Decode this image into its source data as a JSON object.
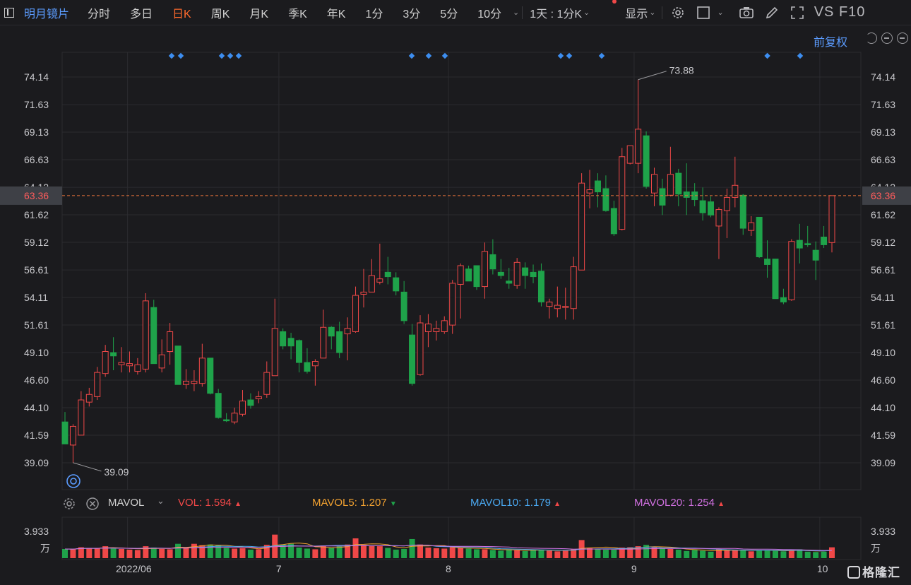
{
  "toolbar": {
    "stock_name": "明月镜片",
    "tabs": [
      {
        "label": "分时",
        "active": false
      },
      {
        "label": "多日",
        "active": false
      },
      {
        "label": "日K",
        "active": true
      },
      {
        "label": "周K",
        "active": false
      },
      {
        "label": "月K",
        "active": false
      },
      {
        "label": "季K",
        "active": false
      },
      {
        "label": "年K",
        "active": false
      },
      {
        "label": "1分",
        "active": false
      },
      {
        "label": "3分",
        "active": false
      },
      {
        "label": "5分",
        "active": false
      },
      {
        "label": "10分",
        "active": false
      }
    ],
    "period_select": "1天 : 1分K",
    "display_label": "显示",
    "vs_f10": "VS F10",
    "icons": [
      "gear-icon",
      "square-icon",
      "camera-icon",
      "pencil-icon",
      "expand-icon"
    ]
  },
  "chart_header": {
    "adjust_label": "前复权"
  },
  "colors": {
    "up": "#f04848",
    "down": "#1fa34a",
    "background": "#1b1b1e",
    "grid": "#2b2b2f",
    "price_line": "#e8743b",
    "mavol5": "#f0a030",
    "mavol10": "#4aa8f0",
    "mavol20": "#d070e0",
    "marker": "#3d8ef0"
  },
  "indicator_bar": {
    "name": "MAVOL",
    "vol_label": "VOL:",
    "vol_value": "1.594",
    "mavol5_label": "MAVOL5:",
    "mavol5_value": "1.207",
    "mavol10_label": "MAVOL10:",
    "mavol10_value": "1.179",
    "mavol20_label": "MAVOL20:",
    "mavol20_value": "1.254"
  },
  "logo_text": "格隆汇",
  "chart_data": [
    {
      "type": "candlestick",
      "title": "",
      "y_ticks": [
        39.09,
        41.59,
        44.1,
        46.6,
        49.1,
        51.61,
        54.11,
        56.61,
        59.12,
        61.62,
        64.12,
        66.63,
        69.13,
        71.63,
        74.14
      ],
      "y_tick_labels": [
        "39.09",
        "41.59",
        "44.10",
        "46.60",
        "49.10",
        "51.61",
        "54.11",
        "56.61",
        "59.12",
        "61.62",
        "64.12",
        "66.63",
        "69.13",
        "71.63",
        "74.14"
      ],
      "current_price": 63.36,
      "current_price_label": "63.36",
      "high_label": "73.88",
      "low_label": "39.09",
      "x_labels": [
        "2022/06",
        "7",
        "8",
        "9",
        "10"
      ],
      "marker_count": 13,
      "candles": [
        {
          "o": 42.8,
          "h": 43.7,
          "l": 40.8,
          "c": 40.8
        },
        {
          "o": 40.7,
          "h": 42.6,
          "l": 39.1,
          "c": 42.4
        },
        {
          "o": 41.6,
          "h": 45.6,
          "l": 41.6,
          "c": 44.8
        },
        {
          "o": 44.6,
          "h": 45.9,
          "l": 44.2,
          "c": 45.3
        },
        {
          "o": 45.1,
          "h": 47.8,
          "l": 44.8,
          "c": 47.3
        },
        {
          "o": 47.2,
          "h": 49.8,
          "l": 46.9,
          "c": 49.2
        },
        {
          "o": 49.1,
          "h": 50.5,
          "l": 47.5,
          "c": 48.8
        },
        {
          "o": 48.0,
          "h": 49.6,
          "l": 47.3,
          "c": 48.2
        },
        {
          "o": 47.9,
          "h": 49.2,
          "l": 47.3,
          "c": 48.1
        },
        {
          "o": 47.4,
          "h": 48.6,
          "l": 47.1,
          "c": 48.0
        },
        {
          "o": 47.6,
          "h": 54.5,
          "l": 47.3,
          "c": 53.8
        },
        {
          "o": 53.2,
          "h": 53.9,
          "l": 48.1,
          "c": 48.1
        },
        {
          "o": 47.7,
          "h": 50.3,
          "l": 47.3,
          "c": 48.9
        },
        {
          "o": 49.2,
          "h": 51.8,
          "l": 48.0,
          "c": 51.0
        },
        {
          "o": 49.7,
          "h": 49.7,
          "l": 46.2,
          "c": 46.2
        },
        {
          "o": 46.2,
          "h": 47.6,
          "l": 45.8,
          "c": 46.5
        },
        {
          "o": 46.3,
          "h": 47.5,
          "l": 45.6,
          "c": 46.5
        },
        {
          "o": 46.3,
          "h": 49.9,
          "l": 46.0,
          "c": 48.6
        },
        {
          "o": 48.6,
          "h": 48.6,
          "l": 45.3,
          "c": 45.4
        },
        {
          "o": 45.4,
          "h": 45.8,
          "l": 43.1,
          "c": 43.2
        },
        {
          "o": 43.0,
          "h": 43.6,
          "l": 42.8,
          "c": 42.9
        },
        {
          "o": 42.8,
          "h": 44.1,
          "l": 42.6,
          "c": 43.6
        },
        {
          "o": 43.5,
          "h": 45.7,
          "l": 43.3,
          "c": 44.7
        },
        {
          "o": 44.8,
          "h": 45.4,
          "l": 44.0,
          "c": 44.3
        },
        {
          "o": 44.9,
          "h": 45.6,
          "l": 44.5,
          "c": 45.1
        },
        {
          "o": 45.3,
          "h": 48.3,
          "l": 45.0,
          "c": 47.3
        },
        {
          "o": 47.0,
          "h": 54.0,
          "l": 47.0,
          "c": 51.3
        },
        {
          "o": 51.0,
          "h": 51.3,
          "l": 49.4,
          "c": 49.7
        },
        {
          "o": 50.4,
          "h": 50.9,
          "l": 48.5,
          "c": 49.7
        },
        {
          "o": 50.2,
          "h": 50.3,
          "l": 47.3,
          "c": 48.2
        },
        {
          "o": 48.2,
          "h": 49.5,
          "l": 47.2,
          "c": 47.4
        },
        {
          "o": 47.9,
          "h": 48.5,
          "l": 46.1,
          "c": 48.3
        },
        {
          "o": 48.6,
          "h": 53.0,
          "l": 48.6,
          "c": 51.4
        },
        {
          "o": 51.4,
          "h": 51.5,
          "l": 49.4,
          "c": 50.6
        },
        {
          "o": 51.0,
          "h": 51.9,
          "l": 48.6,
          "c": 49.1
        },
        {
          "o": 50.8,
          "h": 52.3,
          "l": 48.4,
          "c": 51.3
        },
        {
          "o": 51.0,
          "h": 55.1,
          "l": 50.9,
          "c": 54.3
        },
        {
          "o": 54.4,
          "h": 56.7,
          "l": 53.2,
          "c": 54.6
        },
        {
          "o": 54.6,
          "h": 57.6,
          "l": 54.6,
          "c": 56.1
        },
        {
          "o": 55.5,
          "h": 59.0,
          "l": 55.3,
          "c": 55.8
        },
        {
          "o": 56.4,
          "h": 57.8,
          "l": 55.3,
          "c": 56.0
        },
        {
          "o": 55.9,
          "h": 56.4,
          "l": 54.3,
          "c": 54.7
        },
        {
          "o": 54.6,
          "h": 55.6,
          "l": 51.7,
          "c": 52.0
        },
        {
          "o": 50.7,
          "h": 51.7,
          "l": 46.1,
          "c": 46.3
        },
        {
          "o": 47.1,
          "h": 52.5,
          "l": 47.0,
          "c": 51.8
        },
        {
          "o": 51.0,
          "h": 52.6,
          "l": 49.6,
          "c": 51.7
        },
        {
          "o": 51.0,
          "h": 52.0,
          "l": 50.2,
          "c": 51.3
        },
        {
          "o": 51.0,
          "h": 52.4,
          "l": 50.8,
          "c": 52.0
        },
        {
          "o": 51.6,
          "h": 55.7,
          "l": 50.8,
          "c": 55.4
        },
        {
          "o": 55.3,
          "h": 57.2,
          "l": 52.2,
          "c": 57.0
        },
        {
          "o": 56.7,
          "h": 57.0,
          "l": 55.6,
          "c": 55.6
        },
        {
          "o": 57.0,
          "h": 57.0,
          "l": 54.8,
          "c": 55.1
        },
        {
          "o": 55.1,
          "h": 59.1,
          "l": 54.0,
          "c": 58.3
        },
        {
          "o": 58.0,
          "h": 59.4,
          "l": 56.2,
          "c": 56.7
        },
        {
          "o": 56.4,
          "h": 57.6,
          "l": 55.8,
          "c": 56.1
        },
        {
          "o": 55.6,
          "h": 56.8,
          "l": 54.9,
          "c": 55.4
        },
        {
          "o": 55.2,
          "h": 57.7,
          "l": 54.9,
          "c": 57.3
        },
        {
          "o": 56.8,
          "h": 57.3,
          "l": 54.9,
          "c": 56.1
        },
        {
          "o": 56.4,
          "h": 57.1,
          "l": 55.4,
          "c": 56.0
        },
        {
          "o": 56.5,
          "h": 57.2,
          "l": 53.3,
          "c": 53.7
        },
        {
          "o": 53.3,
          "h": 54.0,
          "l": 52.2,
          "c": 53.7
        },
        {
          "o": 53.1,
          "h": 55.1,
          "l": 52.3,
          "c": 53.4
        },
        {
          "o": 53.2,
          "h": 55.0,
          "l": 52.1,
          "c": 53.3
        },
        {
          "o": 53.1,
          "h": 57.8,
          "l": 52.1,
          "c": 56.9
        },
        {
          "o": 56.6,
          "h": 65.4,
          "l": 56.6,
          "c": 64.5
        },
        {
          "o": 63.6,
          "h": 65.7,
          "l": 62.2,
          "c": 63.9
        },
        {
          "o": 64.7,
          "h": 65.4,
          "l": 62.3,
          "c": 63.7
        },
        {
          "o": 64.0,
          "h": 65.2,
          "l": 61.9,
          "c": 62.0
        },
        {
          "o": 62.2,
          "h": 62.9,
          "l": 59.7,
          "c": 59.9
        },
        {
          "o": 60.3,
          "h": 67.7,
          "l": 60.2,
          "c": 66.9
        },
        {
          "o": 66.3,
          "h": 67.9,
          "l": 66.2,
          "c": 67.9
        },
        {
          "o": 66.3,
          "h": 73.9,
          "l": 65.4,
          "c": 69.4
        },
        {
          "o": 68.8,
          "h": 69.2,
          "l": 64.0,
          "c": 64.2
        },
        {
          "o": 63.6,
          "h": 65.9,
          "l": 62.4,
          "c": 65.3
        },
        {
          "o": 64.0,
          "h": 64.9,
          "l": 61.6,
          "c": 62.5
        },
        {
          "o": 63.4,
          "h": 67.8,
          "l": 63.3,
          "c": 65.3
        },
        {
          "o": 65.4,
          "h": 65.8,
          "l": 62.4,
          "c": 63.5
        },
        {
          "o": 63.7,
          "h": 66.3,
          "l": 61.6,
          "c": 63.2
        },
        {
          "o": 63.7,
          "h": 64.5,
          "l": 62.4,
          "c": 63.0
        },
        {
          "o": 62.9,
          "h": 64.1,
          "l": 61.1,
          "c": 61.8
        },
        {
          "o": 62.8,
          "h": 63.3,
          "l": 61.4,
          "c": 61.6
        },
        {
          "o": 60.6,
          "h": 62.3,
          "l": 57.6,
          "c": 62.1
        },
        {
          "o": 62.0,
          "h": 64.0,
          "l": 59.5,
          "c": 63.2
        },
        {
          "o": 63.2,
          "h": 66.9,
          "l": 62.3,
          "c": 64.3
        },
        {
          "o": 63.4,
          "h": 63.5,
          "l": 59.8,
          "c": 60.4
        },
        {
          "o": 60.2,
          "h": 61.5,
          "l": 59.7,
          "c": 60.9
        },
        {
          "o": 61.4,
          "h": 61.4,
          "l": 57.7,
          "c": 57.8
        },
        {
          "o": 57.6,
          "h": 59.3,
          "l": 55.9,
          "c": 57.1
        },
        {
          "o": 57.6,
          "h": 57.6,
          "l": 54.0,
          "c": 54.0
        },
        {
          "o": 54.1,
          "h": 54.9,
          "l": 53.5,
          "c": 53.7
        },
        {
          "o": 53.9,
          "h": 59.4,
          "l": 53.8,
          "c": 59.2
        },
        {
          "o": 59.3,
          "h": 60.8,
          "l": 57.2,
          "c": 58.6
        },
        {
          "o": 59.0,
          "h": 60.6,
          "l": 58.7,
          "c": 58.9
        },
        {
          "o": 58.4,
          "h": 59.2,
          "l": 55.7,
          "c": 57.5
        },
        {
          "o": 59.6,
          "h": 60.6,
          "l": 58.6,
          "c": 58.9
        },
        {
          "o": 59.1,
          "h": 63.4,
          "l": 58.2,
          "c": 63.36
        }
      ]
    },
    {
      "type": "bar",
      "title": "MAVOL",
      "y_tick_label": "3.933",
      "unit_label": "万",
      "up_down": "matches candles",
      "values": [
        1.35,
        1.3,
        1.6,
        1.5,
        1.45,
        1.75,
        1.4,
        1.35,
        1.25,
        1.2,
        1.75,
        1.55,
        1.35,
        1.3,
        2.1,
        1.6,
        2.1,
        1.9,
        2.0,
        1.9,
        1.5,
        1.4,
        1.45,
        1.25,
        1.3,
        1.95,
        3.45,
        2.0,
        2.1,
        1.55,
        1.4,
        1.3,
        1.85,
        1.5,
        1.8,
        2.0,
        2.9,
        1.95,
        1.8,
        1.75,
        1.5,
        1.25,
        1.35,
        2.8,
        2.0,
        1.55,
        1.45,
        1.4,
        1.65,
        1.5,
        1.4,
        1.3,
        1.3,
        1.2,
        1.1,
        1.25,
        1.15,
        1.05,
        1.25,
        1.25,
        1.1,
        1.0,
        1.1,
        1.35,
        2.65,
        1.45,
        1.35,
        1.25,
        1.25,
        1.55,
        1.6,
        1.75,
        1.95,
        1.6,
        1.4,
        1.35,
        1.25,
        1.05,
        1.2,
        1.1,
        0.95,
        1.3,
        1.2,
        1.25,
        1.15,
        1.0,
        1.15,
        1.15,
        1.1,
        1.0,
        1.2,
        1.3,
        0.95,
        0.9,
        0.95,
        1.59
      ]
    }
  ]
}
